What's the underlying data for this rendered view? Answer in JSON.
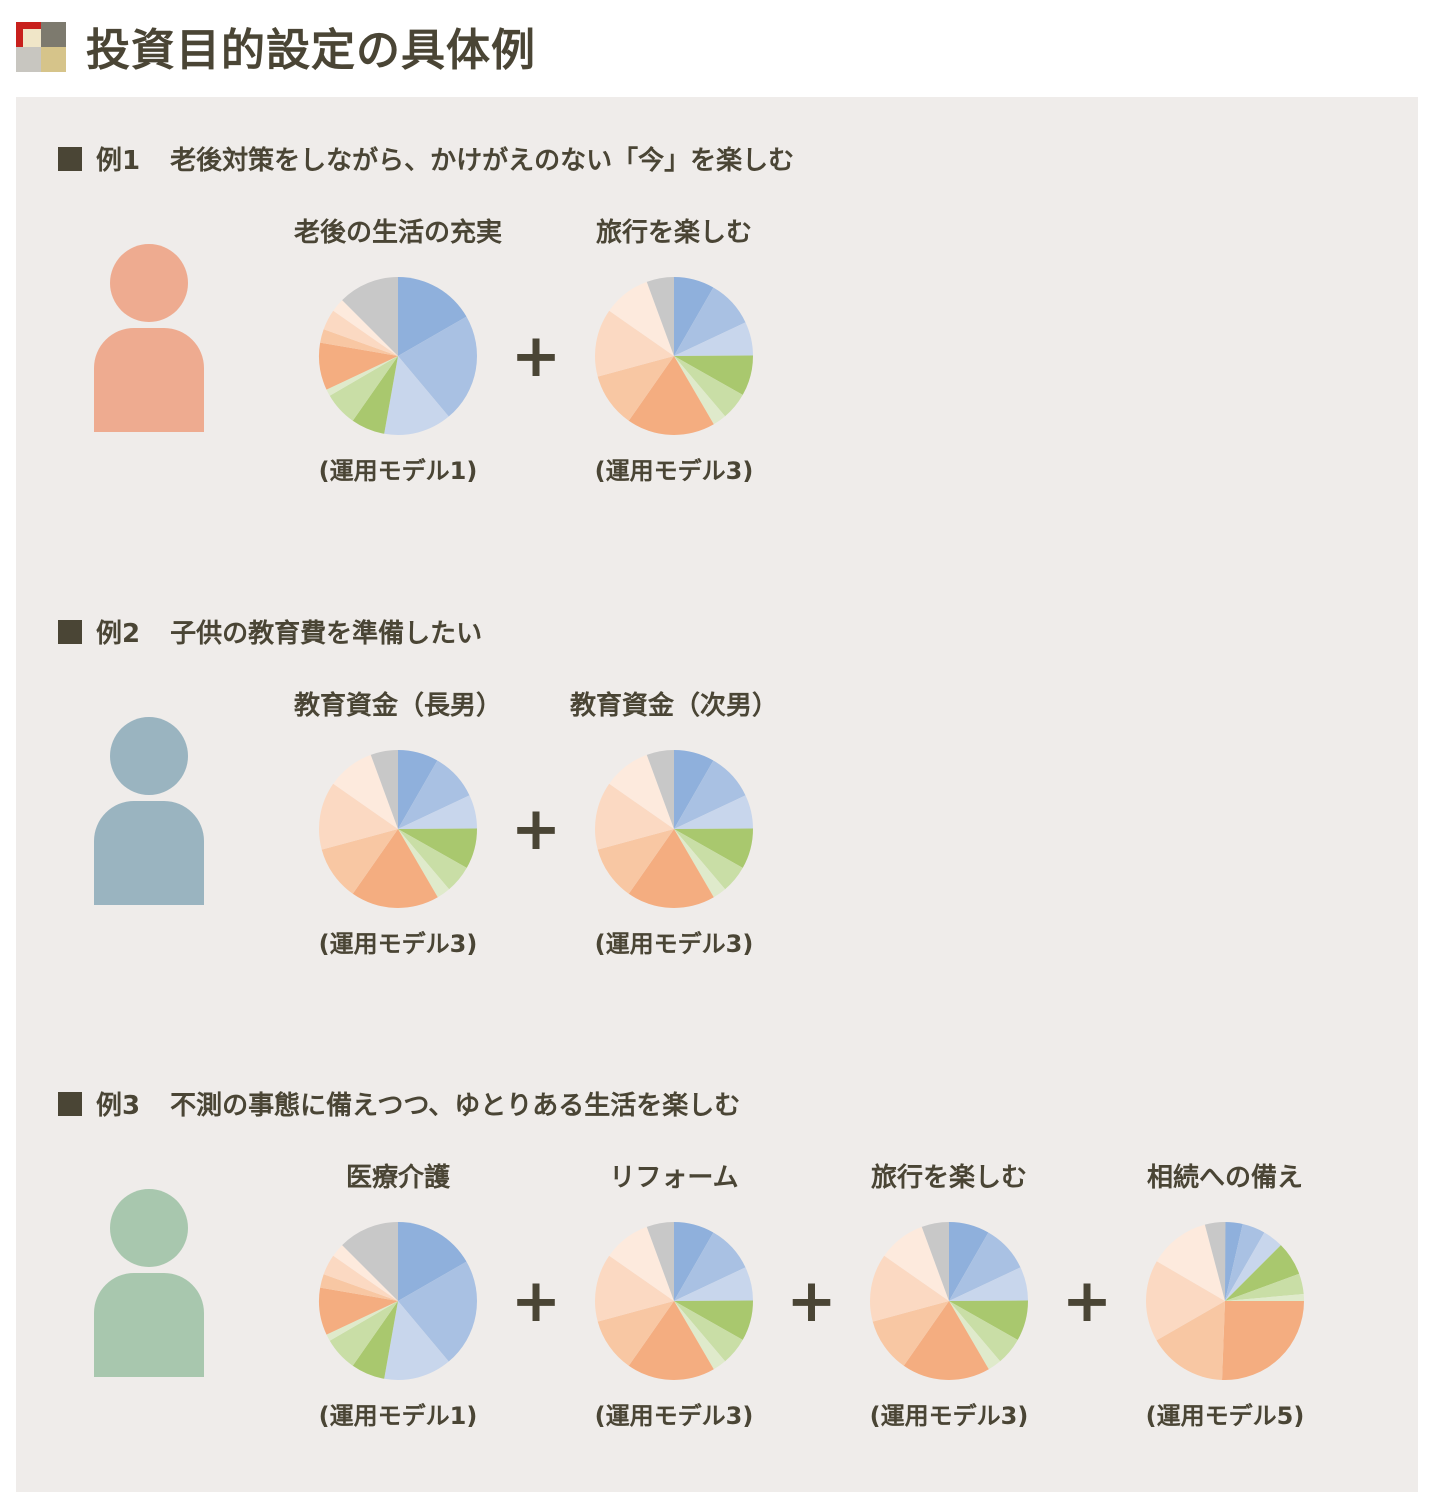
{
  "title": "投資目的設定の具体例",
  "logo_colors": [
    "#c8201c",
    "#7d7a6e",
    "#c8c6c0",
    "#d6c48a"
  ],
  "palette": {
    "blue_dark": "#8fb0dc",
    "blue_mid": "#a9c1e3",
    "blue_light": "#c8d6ec",
    "green_dark": "#a9c86e",
    "green_mid": "#c9dea6",
    "green_light": "#dfeacb",
    "orange_dark": "#f4ad80",
    "orange_mid": "#f8c7a3",
    "orange_light": "#fbd9c2",
    "orange_pale": "#fdeadd",
    "gray": "#c8c8c8"
  },
  "models": {
    "1": [
      16.7,
      22.2,
      13.9,
      6.9,
      6.9,
      1.4,
      9.7,
      2.8,
      4.2,
      2.8,
      12.5
    ],
    "3": [
      8.3,
      9.7,
      6.9,
      8.3,
      5.6,
      2.8,
      18.1,
      11.1,
      13.9,
      9.7,
      5.6
    ],
    "5": [
      3.6,
      4.7,
      4.2,
      6.9,
      4.2,
      1.4,
      25.6,
      16.1,
      16.7,
      12.5,
      4.2
    ]
  },
  "plus": "+",
  "examples": [
    {
      "label": "■",
      "number": "例1",
      "title": "老後対策をしながら、かけがえのない「今」を楽しむ",
      "person_color": "#eeab90",
      "goals": [
        {
          "name": "老後の生活の充実",
          "caption": "(運用モデル1)",
          "model": "1"
        },
        {
          "name": "旅行を楽しむ",
          "caption": "(運用モデル3)",
          "model": "3"
        }
      ]
    },
    {
      "label": "■",
      "number": "例2",
      "title": "子供の教育費を準備したい",
      "person_color": "#9ab4c0",
      "goals": [
        {
          "name": "教育資金（長男）",
          "caption": "(運用モデル3)",
          "model": "3"
        },
        {
          "name": "教育資金（次男）",
          "caption": "(運用モデル3)",
          "model": "3"
        }
      ]
    },
    {
      "label": "■",
      "number": "例3",
      "title": "不測の事態に備えつつ、ゆとりある生活を楽しむ",
      "person_color": "#a8c7ae",
      "goals": [
        {
          "name": "医療介護",
          "caption": "(運用モデル1)",
          "model": "1"
        },
        {
          "name": "リフォーム",
          "caption": "(運用モデル3)",
          "model": "3"
        },
        {
          "name": "旅行を楽しむ",
          "caption": "(運用モデル3)",
          "model": "3"
        },
        {
          "name": "相続への備え",
          "caption": "(運用モデル5)",
          "model": "5"
        }
      ]
    }
  ]
}
